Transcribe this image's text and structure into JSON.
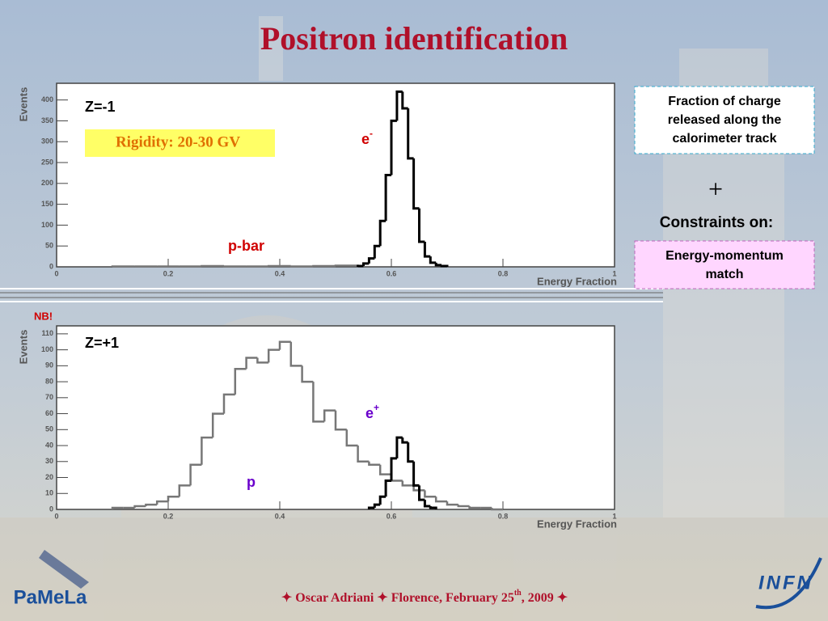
{
  "title": "Positron identification",
  "note": "NB!",
  "side": {
    "box1": [
      "Fraction of charge",
      "released along the",
      "calorimeter track"
    ],
    "plus": "+",
    "constraints": "Constraints on:",
    "box2": [
      "Energy-momentum",
      "match"
    ]
  },
  "footer": {
    "before": "✦ Oscar Adriani ✦ Florence, February 25",
    "sup": "th",
    "after": ", 2009 ✦"
  },
  "logos": {
    "left": "PaMeLa",
    "right": "INFN"
  },
  "chart_data": [
    {
      "type": "histogram",
      "xlabel": "Energy Fraction",
      "ylabel": "Events",
      "xlim": [
        0,
        1
      ],
      "xticks": [
        0,
        0.2,
        0.4,
        0.6,
        0.8,
        1
      ],
      "ylim": [
        0,
        440
      ],
      "yticks": [
        0,
        50,
        100,
        150,
        200,
        250,
        300,
        350,
        400
      ],
      "annotations": [
        "Z=-1",
        "Rigidity: 20-30 GV",
        {
          "base": "e",
          "sup": "-"
        },
        "p-bar"
      ],
      "series": [
        {
          "color": "#777777",
          "bins": [
            0.1,
            0.14,
            0.18,
            0.22,
            0.26,
            0.3,
            0.34,
            0.38,
            0.42,
            0.46,
            0.5,
            0.54
          ],
          "values": [
            1,
            1,
            1,
            1,
            2,
            1,
            1,
            2,
            1,
            2,
            3
          ]
        },
        {
          "color": "#000000",
          "bins": [
            0.54,
            0.55,
            0.56,
            0.57,
            0.58,
            0.59,
            0.6,
            0.61,
            0.62,
            0.63,
            0.64,
            0.65,
            0.66,
            0.67,
            0.68,
            0.69,
            0.7
          ],
          "values": [
            2,
            8,
            20,
            50,
            110,
            220,
            350,
            420,
            380,
            260,
            140,
            60,
            25,
            10,
            4,
            2
          ]
        }
      ]
    },
    {
      "type": "histogram",
      "xlabel": "Energy Fraction",
      "ylabel": "Events",
      "xlim": [
        0,
        1
      ],
      "xticks": [
        0,
        0.2,
        0.4,
        0.6,
        0.8,
        1
      ],
      "ylim": [
        0,
        115
      ],
      "yticks": [
        0,
        10,
        20,
        30,
        40,
        50,
        60,
        70,
        80,
        90,
        100,
        110
      ],
      "annotations": [
        "Z=+1",
        {
          "base": "e",
          "sup": "+"
        },
        "p"
      ],
      "series": [
        {
          "color": "#777777",
          "bins": [
            0.1,
            0.12,
            0.14,
            0.16,
            0.18,
            0.2,
            0.22,
            0.24,
            0.26,
            0.28,
            0.3,
            0.32,
            0.34,
            0.36,
            0.38,
            0.4,
            0.42,
            0.44,
            0.46,
            0.48,
            0.5,
            0.52,
            0.54,
            0.56,
            0.58,
            0.6,
            0.62,
            0.64,
            0.66,
            0.68,
            0.7,
            0.72,
            0.74,
            0.76,
            0.78,
            0.8
          ],
          "values": [
            1,
            1,
            2,
            3,
            5,
            8,
            15,
            28,
            45,
            60,
            72,
            88,
            95,
            92,
            100,
            105,
            90,
            80,
            55,
            62,
            50,
            40,
            30,
            28,
            22,
            18,
            15,
            12,
            8,
            5,
            3,
            2,
            1,
            1,
            0
          ]
        },
        {
          "color": "#000000",
          "bins": [
            0.56,
            0.57,
            0.58,
            0.59,
            0.6,
            0.61,
            0.62,
            0.63,
            0.64,
            0.65,
            0.66,
            0.67,
            0.68
          ],
          "values": [
            1,
            3,
            8,
            18,
            32,
            45,
            42,
            30,
            15,
            6,
            2,
            1
          ]
        }
      ]
    }
  ]
}
